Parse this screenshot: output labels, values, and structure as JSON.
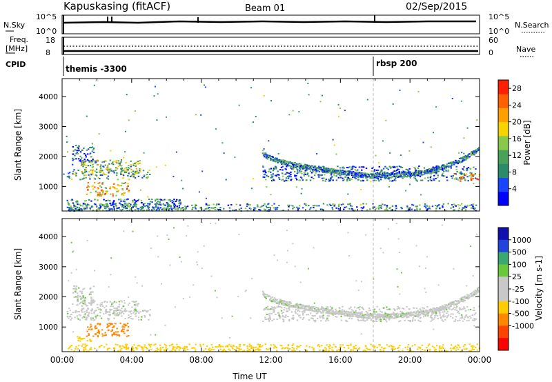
{
  "header": {
    "station": "Kapuskasing (fitACF)",
    "beam": "Beam 01",
    "date": "02/Sep/2015"
  },
  "noise_panel": {
    "left_label": "N.Sky",
    "right_label": "N.Search",
    "ytick_top": "10^5",
    "ytick_bottom": "10^0"
  },
  "freq_panel": {
    "label_line1": "Freq.",
    "label_line2": "[MHz]",
    "ytick_top": "18",
    "ytick_bottom": "8",
    "right_label": "Nave",
    "right_tick_top": "60",
    "right_tick_bottom": "0"
  },
  "cpid_panel": {
    "label": "CPID",
    "programs": [
      {
        "name": "themis -3300",
        "start_hour": 0.0
      },
      {
        "name": "rbsp 200",
        "start_hour": 18.0
      }
    ]
  },
  "colors": {
    "power_scale": [
      "#0000ff",
      "#1a44ff",
      "#2a8a6a",
      "#4aa25a",
      "#88c84a",
      "#f5d400",
      "#ffa000",
      "#ff6000",
      "#ff2000"
    ],
    "velocity_scale": [
      "#1010b0",
      "#2244dd",
      "#3aa870",
      "#6ac83a",
      "#c8c8c8",
      "#c8c8c8",
      "#ffcc00",
      "#ff8800",
      "#ff4400",
      "#ff0000"
    ]
  },
  "chart_data": [
    {
      "type": "heatmap",
      "name": "power",
      "ylabel": "Slant Range [km]",
      "xlim": [
        0,
        24
      ],
      "ylim": [
        180,
        4600
      ],
      "yticks": [
        1000,
        2000,
        3000,
        4000
      ],
      "colorbar_label": "Power [dB]",
      "colorbar_ticks": [
        "4",
        "8",
        "12",
        "16",
        "20",
        "24",
        "28"
      ],
      "colorbar_range": [
        0,
        30
      ],
      "regions": [
        {
          "t0": 0.2,
          "t1": 5.0,
          "r0": 1250,
          "r1": 1600,
          "value": 12
        },
        {
          "t0": 0.5,
          "t1": 1.8,
          "r0": 1750,
          "r1": 2400,
          "value": 6
        },
        {
          "t0": 1.0,
          "t1": 4.5,
          "r0": 1500,
          "r1": 1900,
          "value": 14
        },
        {
          "t0": 1.3,
          "t1": 3.8,
          "r0": 700,
          "r1": 1150,
          "value": 20
        },
        {
          "t0": 0.2,
          "t1": 7.0,
          "r0": 200,
          "r1": 600,
          "value": 8
        },
        {
          "t0": 11.5,
          "t1": 23.8,
          "r0": 1200,
          "r1": 1700,
          "value": 8
        },
        {
          "t0": 22.5,
          "t1": 24.0,
          "r0": 1200,
          "r1": 1450,
          "value": 22
        },
        {
          "t0": 0.2,
          "t1": 24.0,
          "r0": 200,
          "r1": 450,
          "value": 9
        }
      ],
      "arc": {
        "t_start": 11.5,
        "t_min": 17.5,
        "t_end": 24.0,
        "r_start": 2150,
        "r_min": 1350,
        "r_end": 2250,
        "value": 8
      }
    },
    {
      "type": "heatmap",
      "name": "velocity",
      "xlabel": "Time UT",
      "ylabel": "Slant Range [km]",
      "xlim": [
        0,
        24
      ],
      "ylim": [
        180,
        4600
      ],
      "xticks": [
        "00:00",
        "04:00",
        "08:00",
        "12:00",
        "16:00",
        "20:00",
        "00:00"
      ],
      "yticks": [
        1000,
        2000,
        3000,
        4000
      ],
      "colorbar_label": "Velocity [m s-1]",
      "colorbar_ticks": [
        "1000",
        "500",
        "100",
        "25",
        "-25",
        "-100",
        "-500",
        "-1000"
      ],
      "regions": [
        {
          "t0": 0.2,
          "t1": 5.0,
          "r0": 1250,
          "r1": 1600,
          "value": 0
        },
        {
          "t0": 0.5,
          "t1": 1.8,
          "r0": 1750,
          "r1": 2400,
          "value": 0
        },
        {
          "t0": 1.0,
          "t1": 4.5,
          "r0": 1500,
          "r1": 1900,
          "value": 0
        },
        {
          "t0": 1.3,
          "t1": 3.8,
          "r0": 700,
          "r1": 1150,
          "value": -600
        },
        {
          "t0": 0.8,
          "t1": 1.6,
          "r0": 550,
          "r1": 700,
          "value": -150
        },
        {
          "t0": 11.5,
          "t1": 23.8,
          "r0": 1200,
          "r1": 1700,
          "value": 0
        },
        {
          "t0": 0.2,
          "t1": 24.0,
          "r0": 200,
          "r1": 450,
          "value": -150
        }
      ],
      "arc": {
        "t_start": 11.5,
        "t_min": 17.5,
        "t_end": 24.0,
        "r_start": 2150,
        "r_min": 1350,
        "r_end": 2250,
        "value": 0
      }
    }
  ]
}
